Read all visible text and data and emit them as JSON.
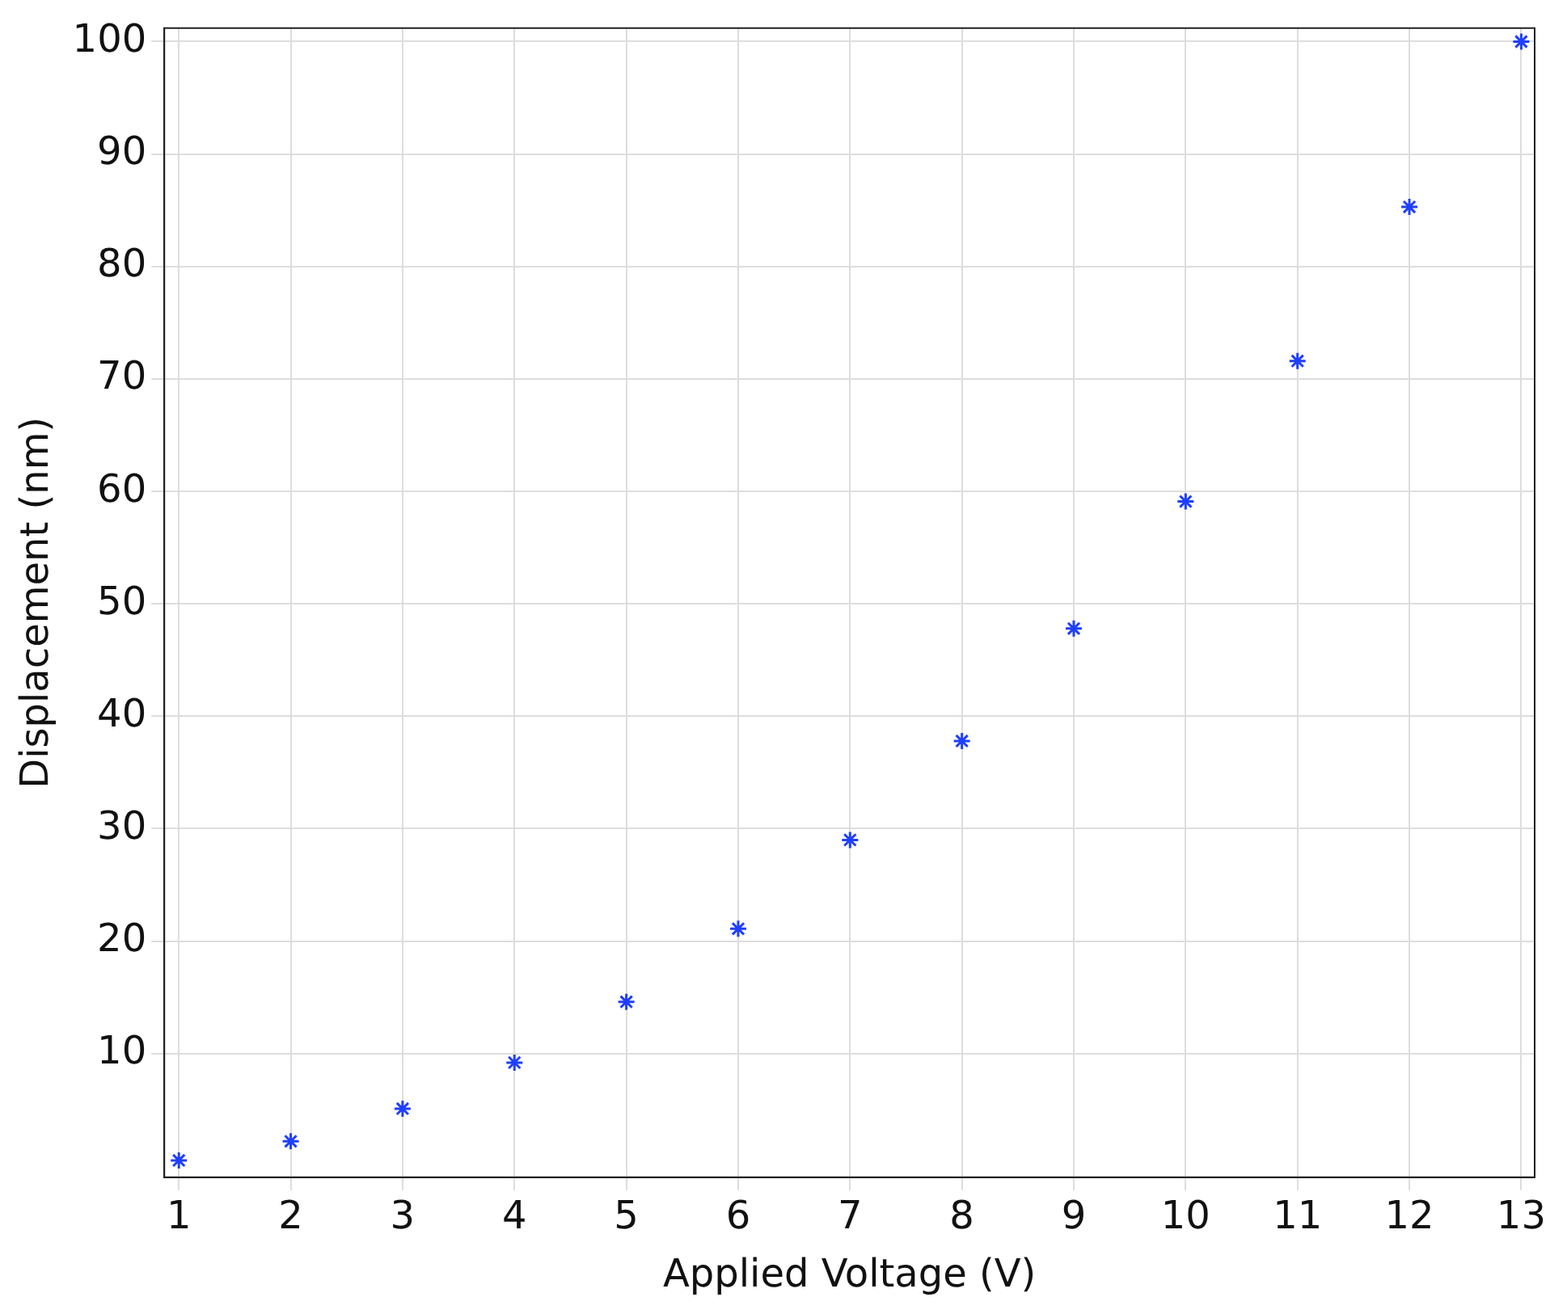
{
  "chart_data": {
    "type": "scatter",
    "xlabel": "Applied Voltage (V)",
    "ylabel": "Displacement (nm)",
    "x": [
      1,
      2,
      3,
      4,
      5,
      6,
      7,
      8,
      9,
      10,
      11,
      12,
      13
    ],
    "series": [
      {
        "color": "#1f3fff",
        "values": [
          0.5,
          2.2,
          5.1,
          9.2,
          14.6,
          21.1,
          29.0,
          37.8,
          47.8,
          59.1,
          71.6,
          85.3,
          100
        ]
      }
    ],
    "xlim": [
      0.87,
      13.12
    ],
    "xticks": [
      1,
      2,
      3,
      4,
      5,
      6,
      7,
      8,
      9,
      10,
      11,
      12,
      13
    ],
    "ylim": [
      -1,
      101.2
    ],
    "yticks": [
      10,
      20,
      30,
      40,
      50,
      60,
      70,
      80,
      90,
      100
    ],
    "grid": true,
    "legend": false,
    "marker": "cross"
  }
}
